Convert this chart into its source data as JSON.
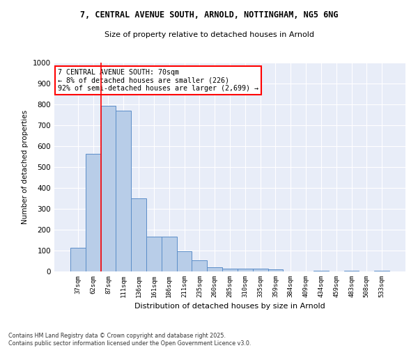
{
  "title_line1": "7, CENTRAL AVENUE SOUTH, ARNOLD, NOTTINGHAM, NG5 6NG",
  "title_line2": "Size of property relative to detached houses in Arnold",
  "xlabel": "Distribution of detached houses by size in Arnold",
  "ylabel": "Number of detached properties",
  "categories": [
    "37sqm",
    "62sqm",
    "87sqm",
    "111sqm",
    "136sqm",
    "161sqm",
    "186sqm",
    "211sqm",
    "235sqm",
    "260sqm",
    "285sqm",
    "310sqm",
    "335sqm",
    "359sqm",
    "384sqm",
    "409sqm",
    "434sqm",
    "459sqm",
    "483sqm",
    "508sqm",
    "533sqm"
  ],
  "values": [
    113,
    562,
    793,
    770,
    350,
    168,
    168,
    98,
    55,
    20,
    14,
    12,
    12,
    10,
    0,
    0,
    5,
    0,
    5,
    0,
    5
  ],
  "bar_color": "#b8cde8",
  "bar_edge_color": "#5b8dc8",
  "red_line_x": 1.5,
  "annotation_title": "7 CENTRAL AVENUE SOUTH: 70sqm",
  "annotation_line1": "← 8% of detached houses are smaller (226)",
  "annotation_line2": "92% of semi-detached houses are larger (2,699) →",
  "ylim": [
    0,
    1000
  ],
  "yticks": [
    0,
    100,
    200,
    300,
    400,
    500,
    600,
    700,
    800,
    900,
    1000
  ],
  "fig_bg_color": "#ffffff",
  "plot_bg_color": "#e8edf8",
  "grid_color": "#ffffff",
  "footnote1": "Contains HM Land Registry data © Crown copyright and database right 2025.",
  "footnote2": "Contains public sector information licensed under the Open Government Licence v3.0."
}
